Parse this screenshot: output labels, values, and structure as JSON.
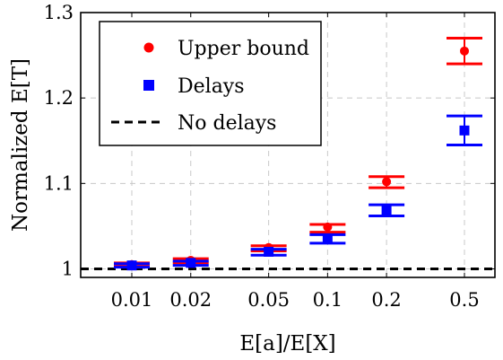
{
  "chart_data": {
    "type": "scatter",
    "title": "",
    "xlabel": "E[a]/E[X]",
    "ylabel": "Normalized E[T]",
    "x_scale": "log",
    "x_ticks": [
      "0.01",
      "0.02",
      "0.05",
      "0.1",
      "0.2",
      "0.5"
    ],
    "x": [
      0.01,
      0.02,
      0.05,
      0.1,
      0.2,
      0.5
    ],
    "y_ticks": [
      "1",
      "1.1",
      "1.2",
      "1.3"
    ],
    "ylim": [
      0.99,
      1.3
    ],
    "grid": true,
    "legend_position": "top-left",
    "series": [
      {
        "name": "Upper bound",
        "marker": "circle",
        "color": "#ff0000",
        "values": [
          1.005,
          1.01,
          1.025,
          1.049,
          1.102,
          1.255
        ],
        "err_low": [
          1.003,
          1.007,
          1.021,
          1.043,
          1.095,
          1.24
        ],
        "err_high": [
          1.007,
          1.012,
          1.027,
          1.052,
          1.108,
          1.27
        ]
      },
      {
        "name": "Delays",
        "marker": "square",
        "color": "#0000ff",
        "values": [
          1.004,
          1.007,
          1.02,
          1.035,
          1.068,
          1.162
        ],
        "err_low": [
          1.002,
          1.004,
          1.016,
          1.03,
          1.062,
          1.145
        ],
        "err_high": [
          1.006,
          1.009,
          1.023,
          1.04,
          1.075,
          1.179
        ]
      },
      {
        "name": "No delays",
        "style": "dashed",
        "color": "#000000",
        "value": 1.0
      }
    ]
  }
}
